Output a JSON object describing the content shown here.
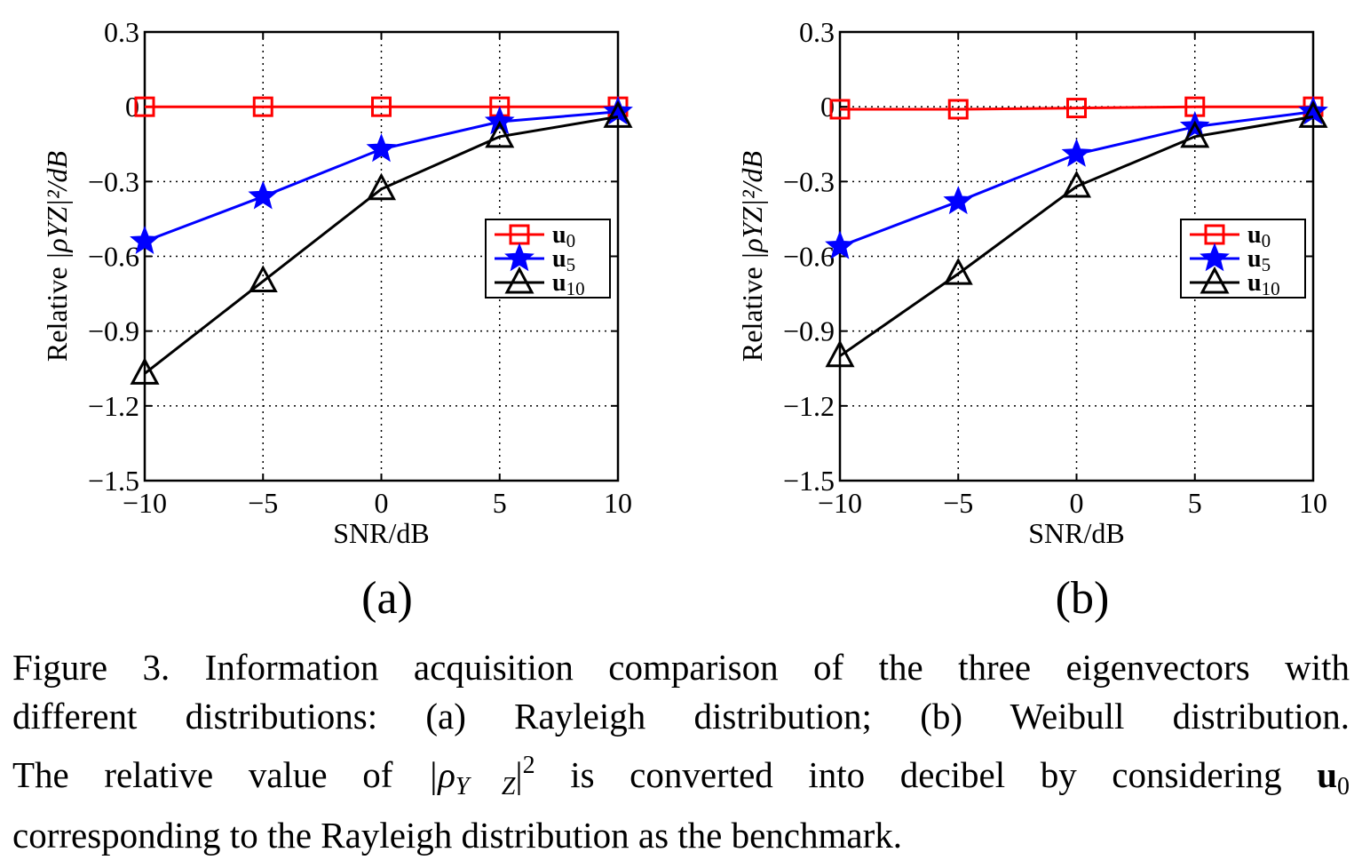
{
  "chart_data": [
    {
      "panel": "a",
      "panel_label": "(a)",
      "type": "line",
      "xlabel": "SNR/dB",
      "ylabel_text": "Relative",
      "ylabel_math": "|ρYZ|²/dB",
      "x": [
        -10,
        -5,
        0,
        5,
        10
      ],
      "xlim": [
        -10,
        10
      ],
      "ylim": [
        -1.5,
        0.3
      ],
      "xticks": [
        "−10",
        "−5",
        "0",
        "5",
        "10"
      ],
      "yticks": [
        "0.3",
        "0",
        "−0.3",
        "−0.6",
        "−0.9",
        "−1.2",
        "−1.5"
      ],
      "ytick_values": [
        0.3,
        0,
        -0.3,
        -0.6,
        -0.9,
        -1.2,
        -1.5
      ],
      "grid": true,
      "legend_position": "right",
      "series": [
        {
          "name": "u",
          "sub": "0",
          "color": "#ff0000",
          "marker": "square",
          "values": [
            0,
            0,
            0,
            0,
            0
          ]
        },
        {
          "name": "u",
          "sub": "5",
          "color": "#0000ff",
          "marker": "star",
          "values": [
            -0.54,
            -0.36,
            -0.17,
            -0.06,
            -0.02
          ]
        },
        {
          "name": "u",
          "sub": "10",
          "color": "#000000",
          "marker": "triangle",
          "values": [
            -1.07,
            -0.7,
            -0.33,
            -0.12,
            -0.04
          ]
        }
      ]
    },
    {
      "panel": "b",
      "panel_label": "(b)",
      "type": "line",
      "xlabel": "SNR/dB",
      "ylabel_text": "Relative",
      "ylabel_math": "|ρYZ|²/dB",
      "x": [
        -10,
        -5,
        0,
        5,
        10
      ],
      "xlim": [
        -10,
        10
      ],
      "ylim": [
        -1.5,
        0.3
      ],
      "xticks": [
        "−10",
        "−5",
        "0",
        "5",
        "10"
      ],
      "yticks": [
        "0.3",
        "0",
        "−0.3",
        "−0.6",
        "−0.9",
        "−1.2",
        "−1.5"
      ],
      "ytick_values": [
        0.3,
        0,
        -0.3,
        -0.6,
        -0.9,
        -1.2,
        -1.5
      ],
      "grid": true,
      "legend_position": "right",
      "series": [
        {
          "name": "u",
          "sub": "0",
          "color": "#ff0000",
          "marker": "square",
          "values": [
            -0.01,
            -0.01,
            -0.005,
            0,
            0
          ]
        },
        {
          "name": "u",
          "sub": "5",
          "color": "#0000ff",
          "marker": "star",
          "values": [
            -0.56,
            -0.38,
            -0.19,
            -0.08,
            -0.02
          ]
        },
        {
          "name": "u",
          "sub": "10",
          "color": "#000000",
          "marker": "triangle",
          "values": [
            -1.0,
            -0.67,
            -0.32,
            -0.12,
            -0.04
          ]
        }
      ]
    }
  ],
  "caption": {
    "line1": "Figure 3.  Information acquisition comparison of the three eigenvectors with",
    "line2": "different distributions: (a) Rayleigh distribution; (b) Weibull distribution.",
    "line3_a": "The relative value of ",
    "line3_rho": "|ρ",
    "line3_yz": "Y Z",
    "line3_bar": "|",
    "line3_sup": "2",
    "line3_b": " is converted into decibel by considering ",
    "line3_u": "u",
    "line3_usub": "0",
    "line4": "corresponding to the Rayleigh distribution as the benchmark."
  }
}
